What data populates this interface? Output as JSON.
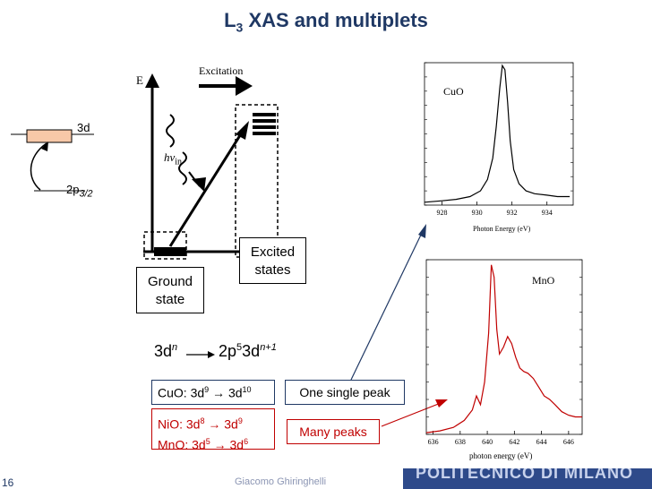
{
  "title": {
    "main": "L",
    "sub": "3",
    "rest": " XAS and multiplets"
  },
  "levels": {
    "upper": {
      "label": "3d"
    },
    "lower": {
      "label": "2p",
      "sub": "3/2"
    }
  },
  "energy_diagram": {
    "axis_label": "E",
    "excitation_label": "Excitation",
    "photon_label": "hν",
    "photon_sub": "in"
  },
  "boxes": {
    "excited": {
      "line1": "Excited",
      "line2": "states"
    },
    "ground": {
      "line1": "Ground",
      "line2": "state"
    }
  },
  "transition": {
    "from_base": "3d",
    "from_sup": "n",
    "to_a": "2p",
    "to_a_sup": "5",
    "to_b": "3d",
    "to_b_sup": "n+1"
  },
  "configs": {
    "cuo": {
      "label": "CuO: 3d",
      "a": "9",
      "b": "3d",
      "c": "10"
    },
    "nio": {
      "label": "NiO: 3d",
      "a": "8",
      "b": "3d",
      "c": "9"
    },
    "mno": {
      "label": "MnO: 3d",
      "a": "5",
      "b": "3d",
      "c": "6"
    }
  },
  "callouts": {
    "single": "One single peak",
    "many": "Many peaks"
  },
  "charts": {
    "cuo": {
      "type": "line",
      "label": "CuO",
      "xlabel": "Photon Energy (eV)",
      "xlim": [
        927,
        935.5
      ],
      "ticks": [
        928,
        930,
        932,
        934
      ],
      "x": [
        927.0,
        928.0,
        928.8,
        929.6,
        930.2,
        930.6,
        930.9,
        931.1,
        931.3,
        931.45,
        931.6,
        931.75,
        931.9,
        932.1,
        932.4,
        932.8,
        933.3,
        934.0,
        934.6,
        935.3
      ],
      "y": [
        0.02,
        0.03,
        0.04,
        0.06,
        0.1,
        0.18,
        0.33,
        0.55,
        0.82,
        0.98,
        0.95,
        0.72,
        0.45,
        0.25,
        0.15,
        0.1,
        0.08,
        0.07,
        0.06,
        0.06
      ]
    },
    "mno": {
      "type": "line",
      "label": "MnO",
      "xlabel": "photon energy (eV)",
      "xlim": [
        635.5,
        647
      ],
      "ticks": [
        636,
        638,
        640,
        642,
        644,
        646
      ],
      "x": [
        635.5,
        636.5,
        637.5,
        638.3,
        638.9,
        639.2,
        639.5,
        639.8,
        640.1,
        640.3,
        640.5,
        640.7,
        640.9,
        641.2,
        641.5,
        641.8,
        642.1,
        642.4,
        642.7,
        643.0,
        643.4,
        643.8,
        644.2,
        644.6,
        645.0,
        645.5,
        646.0,
        646.5,
        647.0
      ],
      "y": [
        0.01,
        0.02,
        0.04,
        0.08,
        0.14,
        0.22,
        0.17,
        0.3,
        0.58,
        0.97,
        0.9,
        0.6,
        0.46,
        0.5,
        0.56,
        0.52,
        0.44,
        0.38,
        0.36,
        0.35,
        0.32,
        0.27,
        0.22,
        0.2,
        0.17,
        0.13,
        0.11,
        0.1,
        0.1
      ]
    }
  },
  "footer": {
    "page": "16",
    "author": "Giacomo Ghiringhelli",
    "brand": "POLITECNICO DI MILANO"
  },
  "colors": {
    "title": "#1f3864",
    "red": "#c00000",
    "level_fill": "#f7c8a8"
  }
}
